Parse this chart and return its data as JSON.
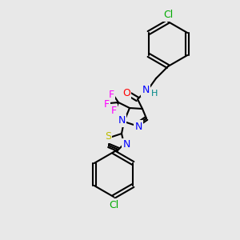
{
  "bg_color": "#e8e8e8",
  "bond_color": "#000000",
  "bond_width": 1.5,
  "atom_colors": {
    "N": "#0000FF",
    "O": "#FF0000",
    "F": "#FF00FF",
    "S": "#BBBB00",
    "Cl_green": "#00AA00",
    "H": "#008888",
    "C": "#000000"
  },
  "font_size": 9,
  "font_size_small": 8
}
